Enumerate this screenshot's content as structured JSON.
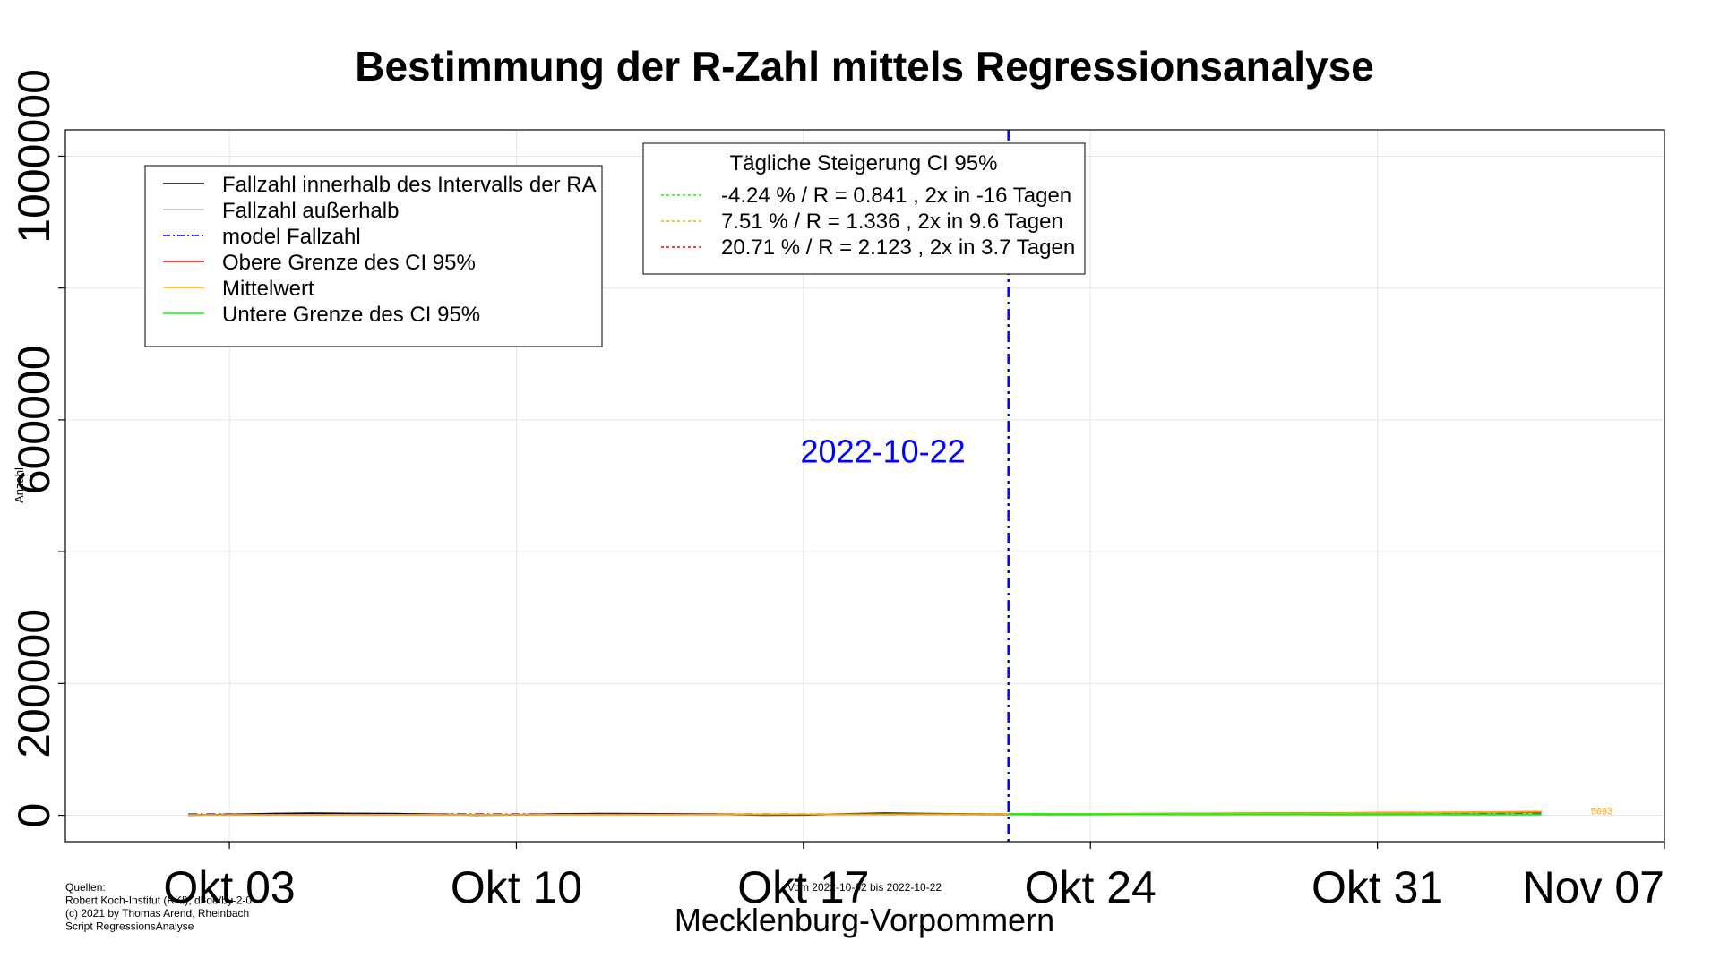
{
  "chart_data": {
    "type": "line",
    "title": "Bestimmung der R-Zahl mittels Regressionsanalyse",
    "xlabel": "Mecklenburg-Vorpommern",
    "ylabel": "Anzahl",
    "subtitle": "Vom 2022-10-02 bis 2022-10-22",
    "x_range": [
      "2022-09-29",
      "2022-11-07"
    ],
    "xticks": [
      {
        "date": "2022-10-03",
        "label": "Okt 03"
      },
      {
        "date": "2022-10-10",
        "label": "Okt 10"
      },
      {
        "date": "2022-10-17",
        "label": "Okt 17"
      },
      {
        "date": "2022-10-24",
        "label": "Okt 24"
      },
      {
        "date": "2022-10-31",
        "label": "Okt 31"
      },
      {
        "date": "2022-11-07",
        "label": "Nov 07"
      }
    ],
    "ylim": [
      -40000,
      1040000
    ],
    "yticks": [
      0,
      200000,
      600000,
      1000000
    ],
    "yticks_minor": [
      400000,
      800000
    ],
    "grid": true,
    "vline": {
      "date": "2022-10-22",
      "label": "2022-10-22",
      "color": "#0000ff"
    },
    "end_label": {
      "date": "2022-11-04",
      "value": 5693,
      "text": "5693"
    },
    "series": [
      {
        "name": "Fallzahl innerhalb des Intervalls der RA",
        "color": "#000000",
        "dash": "",
        "x": [
          "2022-10-02",
          "2022-10-03",
          "2022-10-04",
          "2022-10-05",
          "2022-10-06",
          "2022-10-07",
          "2022-10-08",
          "2022-10-09",
          "2022-10-10",
          "2022-10-11",
          "2022-10-12",
          "2022-10-13",
          "2022-10-14",
          "2022-10-15",
          "2022-10-16",
          "2022-10-17",
          "2022-10-18",
          "2022-10-19",
          "2022-10-20",
          "2022-10-21",
          "2022-10-22"
        ],
        "values": [
          400,
          1000,
          2500,
          3000,
          2700,
          2400,
          1500,
          500,
          700,
          2000,
          2400,
          2200,
          2000,
          1600,
          400,
          600,
          2000,
          3000,
          2400,
          2000,
          1500
        ]
      },
      {
        "name": "Fallzahl außerhalb",
        "color": "#bebebe",
        "dash": "",
        "x": [
          "2022-10-22",
          "2022-10-23",
          "2022-10-24",
          "2022-10-25",
          "2022-10-26",
          "2022-10-27",
          "2022-10-28",
          "2022-10-29",
          "2022-10-30",
          "2022-10-31",
          "2022-11-01",
          "2022-11-02",
          "2022-11-03",
          "2022-11-04"
        ],
        "values": [
          1500,
          500,
          800,
          2000,
          2300,
          2200,
          2000,
          1600,
          500,
          800,
          1500,
          1800,
          1700,
          1500
        ]
      },
      {
        "name": "model Fallzahl",
        "color": "#0000ff",
        "dash": "10 4 2 4",
        "x": [
          "2022-10-02",
          "2022-10-22",
          "2022-11-04"
        ],
        "values": [
          1600,
          1700,
          1800
        ]
      },
      {
        "name": "Obere Grenze des CI 95%",
        "color": "#ff0000",
        "dash": "",
        "x": [
          "2022-10-22",
          "2022-10-25",
          "2022-10-28",
          "2022-10-31",
          "2022-11-02",
          "2022-11-04"
        ],
        "values": [
          1700,
          2200,
          3000,
          3800,
          4300,
          4800
        ]
      },
      {
        "name": "Mittelwert",
        "color": "#ffa500",
        "dash": "",
        "x": [
          "2022-10-02",
          "2022-10-08",
          "2022-10-14",
          "2022-10-22",
          "2022-10-26",
          "2022-10-30",
          "2022-11-02",
          "2022-11-04"
        ],
        "values": [
          600,
          800,
          1100,
          1800,
          2400,
          3300,
          4300,
          5693
        ]
      },
      {
        "name": "Untere Grenze des CI 95%",
        "color": "#00ff00",
        "dash": "",
        "x": [
          "2022-10-22",
          "2022-10-28",
          "2022-11-04"
        ],
        "values": [
          1700,
          1300,
          1000
        ]
      }
    ],
    "legend_main": {
      "position": "top-left",
      "items": [
        {
          "label": "Fallzahl innerhalb des Intervalls der RA",
          "color": "#000000",
          "dash": ""
        },
        {
          "label": "Fallzahl außerhalb",
          "color": "#bebebe",
          "dash": ""
        },
        {
          "label": "model Fallzahl",
          "color": "#0000ff",
          "dash": "8 3 2 3"
        },
        {
          "label": "Obere Grenze des CI 95%",
          "color": "#ff0000",
          "dash": ""
        },
        {
          "label": "Mittelwert",
          "color": "#ffa500",
          "dash": ""
        },
        {
          "label": "Untere Grenze des CI 95%",
          "color": "#00ff00",
          "dash": ""
        }
      ]
    },
    "legend_ci": {
      "position": "top-center",
      "title": "Tägliche Steigerung CI  95%",
      "items": [
        {
          "label": "-4.24 % / R = 0.841 , 2x in -16 Tagen",
          "color": "#00ff00",
          "dash": "3 3"
        },
        {
          "label": "7.51 % / R = 1.336 , 2x in 9.6 Tagen",
          "color": "#ffa500",
          "dash": "3 3"
        },
        {
          "label": "20.71 % / R = 2.123 , 2x in 3.7 Tagen",
          "color": "#ff0000",
          "dash": "3 3"
        }
      ]
    },
    "footer_sources": [
      "Quellen:",
      "Robert Koch-Institut (RKI), dl-de/by-2-0",
      "(c) 2021 by Thomas Arend, Rheinbach",
      "Script RegressionsAnalyse"
    ]
  }
}
